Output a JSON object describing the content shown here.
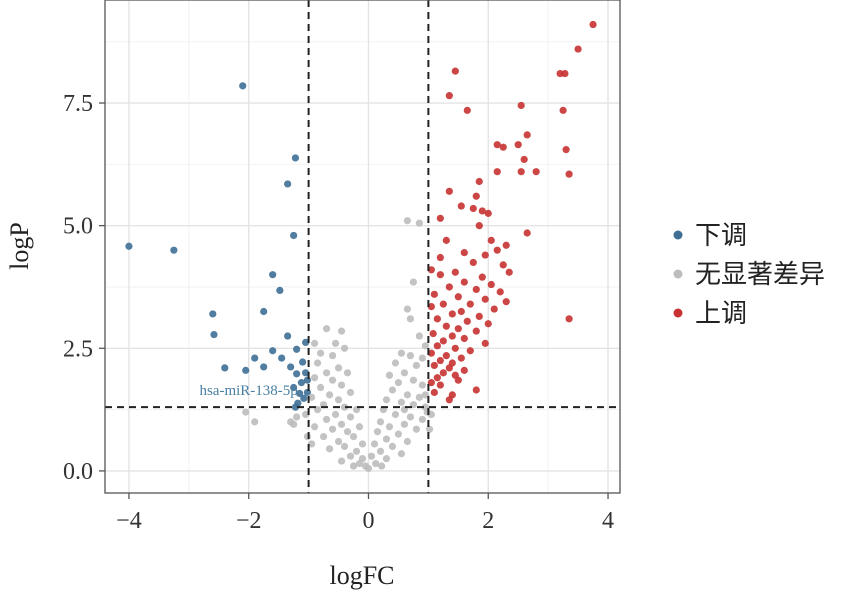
{
  "chart_data": {
    "type": "scatter",
    "xlabel": "logFC",
    "ylabel": "logP",
    "xlim": [
      -4.4,
      4.2
    ],
    "ylim": [
      -0.45,
      9.6
    ],
    "x_ticks": [
      -4,
      -2,
      0,
      2,
      4
    ],
    "x_tick_labels": [
      "−4",
      "−2",
      "0",
      "2",
      "4"
    ],
    "y_ticks": [
      0,
      2.5,
      5,
      7.5
    ],
    "y_tick_labels": [
      "0.0",
      "2.5",
      "5.0",
      "7.5"
    ],
    "grid": true,
    "legend_position": "right",
    "thresholds": {
      "logfc": [
        -1,
        1
      ],
      "logp": 1.3
    },
    "annotations": [
      {
        "text": "hsa-miR-138-5p",
        "x": -1.2,
        "y": 1.55
      }
    ],
    "series": [
      {
        "name": "下调",
        "color": "#3d6f96",
        "points": [
          [
            -2.1,
            7.85
          ],
          [
            -1.22,
            6.38
          ],
          [
            -1.35,
            5.85
          ],
          [
            -1.25,
            4.8
          ],
          [
            -4.0,
            4.58
          ],
          [
            -3.25,
            4.5
          ],
          [
            -1.6,
            4.0
          ],
          [
            -1.48,
            3.68
          ],
          [
            -2.6,
            3.2
          ],
          [
            -1.75,
            3.25
          ],
          [
            -2.58,
            2.78
          ],
          [
            -1.05,
            2.62
          ],
          [
            -1.35,
            2.75
          ],
          [
            -1.6,
            2.45
          ],
          [
            -1.2,
            2.48
          ],
          [
            -1.45,
            2.3
          ],
          [
            -2.4,
            2.1
          ],
          [
            -1.9,
            2.3
          ],
          [
            -1.1,
            2.22
          ],
          [
            -1.3,
            2.12
          ],
          [
            -1.75,
            2.12
          ],
          [
            -2.05,
            2.05
          ],
          [
            -1.05,
            2.0
          ],
          [
            -1.2,
            1.98
          ],
          [
            -1.02,
            1.85
          ],
          [
            -1.12,
            1.8
          ],
          [
            -1.25,
            1.7
          ],
          [
            -1.02,
            1.6
          ],
          [
            -1.15,
            1.58
          ],
          [
            -1.08,
            1.48
          ],
          [
            -1.18,
            1.38
          ],
          [
            -1.22,
            1.3
          ]
        ]
      },
      {
        "name": "无显著差异",
        "color": "#bdbdbd",
        "points": [
          [
            -0.7,
            2.9
          ],
          [
            -0.45,
            2.85
          ],
          [
            -0.55,
            2.6
          ],
          [
            -0.9,
            2.6
          ],
          [
            -0.8,
            2.4
          ],
          [
            -0.6,
            2.35
          ],
          [
            -0.4,
            2.5
          ],
          [
            -0.85,
            2.2
          ],
          [
            -0.5,
            2.1
          ],
          [
            -0.7,
            2.0
          ],
          [
            -0.35,
            2.0
          ],
          [
            -0.9,
            1.9
          ],
          [
            -0.6,
            1.85
          ],
          [
            -0.45,
            1.75
          ],
          [
            -0.8,
            1.7
          ],
          [
            -0.3,
            1.6
          ],
          [
            -0.65,
            1.55
          ],
          [
            -0.95,
            1.5
          ],
          [
            -0.5,
            1.45
          ],
          [
            -0.75,
            1.35
          ],
          [
            -0.4,
            1.3
          ],
          [
            -0.2,
            1.25
          ],
          [
            -0.85,
            1.25
          ],
          [
            -0.55,
            1.15
          ],
          [
            -0.3,
            1.1
          ],
          [
            -0.7,
            1.05
          ],
          [
            -0.45,
            0.95
          ],
          [
            -0.15,
            0.9
          ],
          [
            -0.9,
            0.9
          ],
          [
            -0.6,
            0.85
          ],
          [
            -0.35,
            0.8
          ],
          [
            -0.75,
            0.7
          ],
          [
            -0.25,
            0.7
          ],
          [
            -0.5,
            0.6
          ],
          [
            -0.1,
            0.55
          ],
          [
            -0.4,
            0.5
          ],
          [
            -0.65,
            0.45
          ],
          [
            -0.2,
            0.4
          ],
          [
            -0.3,
            0.3
          ],
          [
            -0.1,
            0.25
          ],
          [
            -0.45,
            0.2
          ],
          [
            -0.15,
            0.15
          ],
          [
            -0.05,
            0.1
          ],
          [
            -0.25,
            0.1
          ],
          [
            0.0,
            0.05
          ],
          [
            -1.05,
            1.15
          ],
          [
            -1.2,
            1.1
          ],
          [
            -1.9,
            1.0
          ],
          [
            -2.05,
            1.2
          ],
          [
            -1.3,
            1.0
          ],
          [
            -1.25,
            0.95
          ],
          [
            -1.02,
            0.7
          ],
          [
            -0.95,
            0.55
          ],
          [
            0.65,
            5.1
          ],
          [
            0.85,
            5.05
          ],
          [
            0.75,
            3.85
          ],
          [
            0.65,
            3.3
          ],
          [
            0.7,
            3.1
          ],
          [
            0.85,
            2.75
          ],
          [
            0.95,
            2.55
          ],
          [
            0.55,
            2.4
          ],
          [
            0.7,
            2.35
          ],
          [
            0.9,
            2.3
          ],
          [
            0.45,
            2.2
          ],
          [
            0.8,
            2.15
          ],
          [
            0.6,
            2.0
          ],
          [
            0.35,
            1.95
          ],
          [
            0.75,
            1.85
          ],
          [
            0.5,
            1.8
          ],
          [
            0.9,
            1.75
          ],
          [
            0.4,
            1.65
          ],
          [
            0.65,
            1.55
          ],
          [
            0.85,
            1.5
          ],
          [
            0.3,
            1.45
          ],
          [
            0.55,
            1.4
          ],
          [
            0.75,
            1.35
          ],
          [
            0.95,
            1.3
          ],
          [
            0.25,
            1.25
          ],
          [
            0.45,
            1.15
          ],
          [
            0.7,
            1.1
          ],
          [
            0.9,
            1.05
          ],
          [
            0.2,
            1.0
          ],
          [
            0.6,
            0.95
          ],
          [
            0.35,
            0.9
          ],
          [
            0.8,
            0.85
          ],
          [
            0.15,
            0.8
          ],
          [
            0.5,
            0.75
          ],
          [
            0.3,
            0.65
          ],
          [
            0.65,
            0.6
          ],
          [
            0.1,
            0.55
          ],
          [
            0.4,
            0.5
          ],
          [
            0.2,
            0.4
          ],
          [
            0.55,
            0.35
          ],
          [
            0.05,
            0.3
          ],
          [
            0.3,
            0.25
          ],
          [
            0.12,
            0.15
          ],
          [
            0.22,
            0.1
          ],
          [
            0.95,
            1.55
          ],
          [
            0.98,
            1.2
          ],
          [
            0.6,
            1.25
          ],
          [
            1.05,
            1.15
          ],
          [
            1.02,
            0.85
          ]
        ]
      },
      {
        "name": "上调",
        "color": "#c83232",
        "points": [
          [
            3.75,
            9.1
          ],
          [
            3.5,
            8.6
          ],
          [
            3.2,
            8.1
          ],
          [
            3.28,
            8.1
          ],
          [
            1.45,
            8.15
          ],
          [
            1.35,
            7.65
          ],
          [
            2.55,
            7.45
          ],
          [
            1.65,
            7.35
          ],
          [
            3.25,
            7.35
          ],
          [
            2.65,
            6.85
          ],
          [
            2.5,
            6.65
          ],
          [
            2.15,
            6.65
          ],
          [
            2.25,
            6.6
          ],
          [
            3.3,
            6.55
          ],
          [
            2.6,
            6.35
          ],
          [
            2.15,
            6.1
          ],
          [
            2.55,
            6.1
          ],
          [
            2.8,
            6.1
          ],
          [
            3.35,
            6.05
          ],
          [
            1.85,
            5.9
          ],
          [
            1.35,
            5.7
          ],
          [
            1.8,
            5.6
          ],
          [
            1.55,
            5.4
          ],
          [
            1.75,
            5.35
          ],
          [
            1.9,
            5.3
          ],
          [
            2.0,
            5.25
          ],
          [
            1.2,
            5.15
          ],
          [
            1.85,
            5.0
          ],
          [
            2.65,
            4.85
          ],
          [
            1.3,
            4.7
          ],
          [
            2.05,
            4.7
          ],
          [
            2.3,
            4.6
          ],
          [
            2.15,
            4.5
          ],
          [
            1.6,
            4.45
          ],
          [
            1.95,
            4.4
          ],
          [
            1.2,
            4.35
          ],
          [
            1.75,
            4.25
          ],
          [
            2.25,
            4.2
          ],
          [
            1.05,
            4.1
          ],
          [
            1.45,
            4.05
          ],
          [
            2.35,
            4.05
          ],
          [
            1.9,
            3.95
          ],
          [
            1.2,
            4.0
          ],
          [
            1.6,
            3.85
          ],
          [
            2.05,
            3.8
          ],
          [
            1.35,
            3.75
          ],
          [
            1.8,
            3.7
          ],
          [
            2.2,
            3.65
          ],
          [
            1.1,
            3.6
          ],
          [
            1.5,
            3.55
          ],
          [
            1.95,
            3.5
          ],
          [
            2.3,
            3.45
          ],
          [
            1.25,
            3.4
          ],
          [
            1.7,
            3.4
          ],
          [
            1.05,
            3.35
          ],
          [
            2.1,
            3.3
          ],
          [
            1.55,
            3.25
          ],
          [
            1.4,
            3.2
          ],
          [
            1.85,
            3.15
          ],
          [
            1.15,
            3.1
          ],
          [
            1.65,
            3.05
          ],
          [
            2.0,
            3.0
          ],
          [
            1.3,
            2.95
          ],
          [
            1.5,
            2.9
          ],
          [
            1.8,
            2.85
          ],
          [
            1.08,
            2.8
          ],
          [
            1.4,
            2.75
          ],
          [
            1.6,
            2.7
          ],
          [
            1.25,
            2.65
          ],
          [
            1.95,
            2.6
          ],
          [
            1.15,
            2.55
          ],
          [
            1.45,
            2.5
          ],
          [
            1.7,
            2.45
          ],
          [
            1.05,
            2.4
          ],
          [
            1.3,
            2.35
          ],
          [
            1.55,
            2.3
          ],
          [
            1.2,
            2.25
          ],
          [
            1.4,
            2.2
          ],
          [
            1.1,
            2.15
          ],
          [
            1.35,
            2.1
          ],
          [
            1.6,
            2.05
          ],
          [
            1.25,
            2.0
          ],
          [
            1.45,
            1.95
          ],
          [
            1.15,
            1.9
          ],
          [
            1.5,
            1.85
          ],
          [
            3.35,
            3.1
          ],
          [
            1.05,
            1.8
          ],
          [
            1.2,
            1.75
          ],
          [
            1.8,
            1.65
          ],
          [
            1.1,
            1.6
          ],
          [
            1.4,
            1.55
          ],
          [
            1.35,
            1.45
          ]
        ]
      }
    ]
  }
}
